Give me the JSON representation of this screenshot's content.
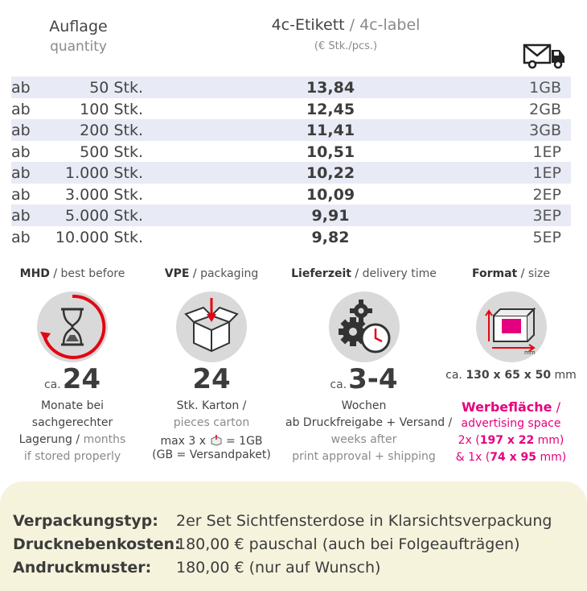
{
  "header": {
    "qty_de": "Auflage",
    "qty_en": "quantity",
    "price_de": "4c-Etikett",
    "price_sep": " / ",
    "price_en": "4c-label",
    "price_unit": "(€ Stk./pcs.)",
    "truck_icon": "delivery-truck-icon"
  },
  "rows": [
    {
      "ab": "ab",
      "qty": "50 Stk.",
      "price": "13,84",
      "ship": "1GB"
    },
    {
      "ab": "ab",
      "qty": "100 Stk.",
      "price": "12,45",
      "ship": "2GB"
    },
    {
      "ab": "ab",
      "qty": "200 Stk.",
      "price": "11,41",
      "ship": "3GB"
    },
    {
      "ab": "ab",
      "qty": "500 Stk.",
      "price": "10,51",
      "ship": "1EP"
    },
    {
      "ab": "ab",
      "qty": "1.000 Stk.",
      "price": "10,22",
      "ship": "1EP"
    },
    {
      "ab": "ab",
      "qty": "3.000 Stk.",
      "price": "10,09",
      "ship": "2EP"
    },
    {
      "ab": "ab",
      "qty": "5.000 Stk.",
      "price": "9,91",
      "ship": "3EP"
    },
    {
      "ab": "ab",
      "qty": "10.000 Stk.",
      "price": "9,82",
      "ship": "5EP"
    }
  ],
  "mhd": {
    "title_de": "MHD",
    "title_en": "best before",
    "icon": "hourglass-icon",
    "ca": "ca.",
    "value": "24",
    "line1": "Monate bei",
    "line2": "sachgerechter",
    "line3_de": "Lagerung",
    "line3_en": "months",
    "line4": "if stored properly"
  },
  "vpe": {
    "title_de": "VPE",
    "title_en": "packaging",
    "icon": "box-icon",
    "value": "24",
    "line1": "Stk. Karton /",
    "line2": "pieces carton",
    "line3a": "max 3 x",
    "line3b": "= 1GB",
    "line4": "(GB = Versandpaket)"
  },
  "delivery": {
    "title_de": "Lieferzeit",
    "title_en": "delivery time",
    "icon": "gears-clock-icon",
    "ca": "ca.",
    "value": "3-4",
    "line1": "Wochen",
    "line2": "ab Druckfreigabe + Versand /",
    "line3": "weeks after",
    "line4": "print approval + shipping"
  },
  "format": {
    "title_de": "Format",
    "title_en": "size",
    "icon": "box-dimensions-icon",
    "icon_label": "mm",
    "ca": "ca.",
    "dims": "130 x 65 x 50",
    "unit": "mm",
    "ad_de": "Werbefläche",
    "ad_en": "advertising space",
    "ad1_pre": "2x (",
    "ad1_val": "197 x 22",
    "ad1_post": " mm)",
    "ad2_pre": "& 1x (",
    "ad2_val": "74 x 95",
    "ad2_post": " mm)"
  },
  "footer": [
    {
      "label": "Verpackungstyp:",
      "value": "2er Set Sichtfensterdose in Klarsichtsverpackung"
    },
    {
      "label": "Drucknebenkosten:",
      "value": "180,00 € pauschal (auch bei Folgeaufträgen)"
    },
    {
      "label": "Andruckmuster:",
      "value": "180,00 € (nur auf Wunsch)"
    }
  ],
  "colors": {
    "accent": "#e6007e",
    "row_stripe": "#e8ebf5",
    "footer_bg": "#f6f3dd",
    "icon_red": "#e30613"
  }
}
